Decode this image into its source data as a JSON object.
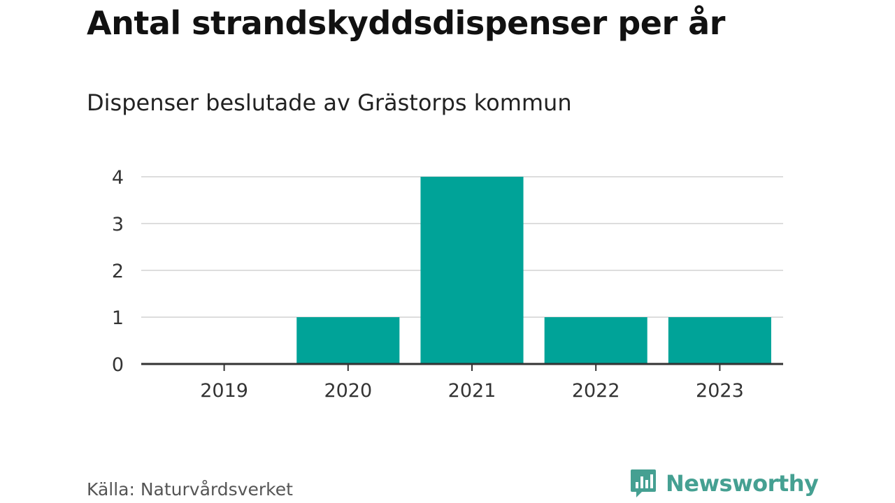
{
  "header": {
    "title": "Antal strandskyddsdispenser per år",
    "subtitle": "Dispenser beslutade av Grästorps kommun"
  },
  "footer": {
    "source": "Källa: Naturvårdsverket",
    "brand_name": "Newsworthy",
    "brand_logo_icon": "newsworthy-logo-icon"
  },
  "colors": {
    "bar": "#00a398",
    "brand": "#45a092",
    "grid": "#dddddd",
    "axis": "#333333"
  },
  "chart_data": {
    "type": "bar",
    "title": "Antal strandskyddsdispenser per år",
    "subtitle": "Dispenser beslutade av Grästorps kommun",
    "categories": [
      "2019",
      "2020",
      "2021",
      "2022",
      "2023"
    ],
    "values": [
      0,
      1,
      4,
      1,
      1
    ],
    "xlabel": "",
    "ylabel": "",
    "ylim": [
      0,
      4
    ],
    "yticks": [
      "0",
      "1",
      "2",
      "3",
      "4"
    ],
    "grid": true,
    "legend": "none"
  }
}
